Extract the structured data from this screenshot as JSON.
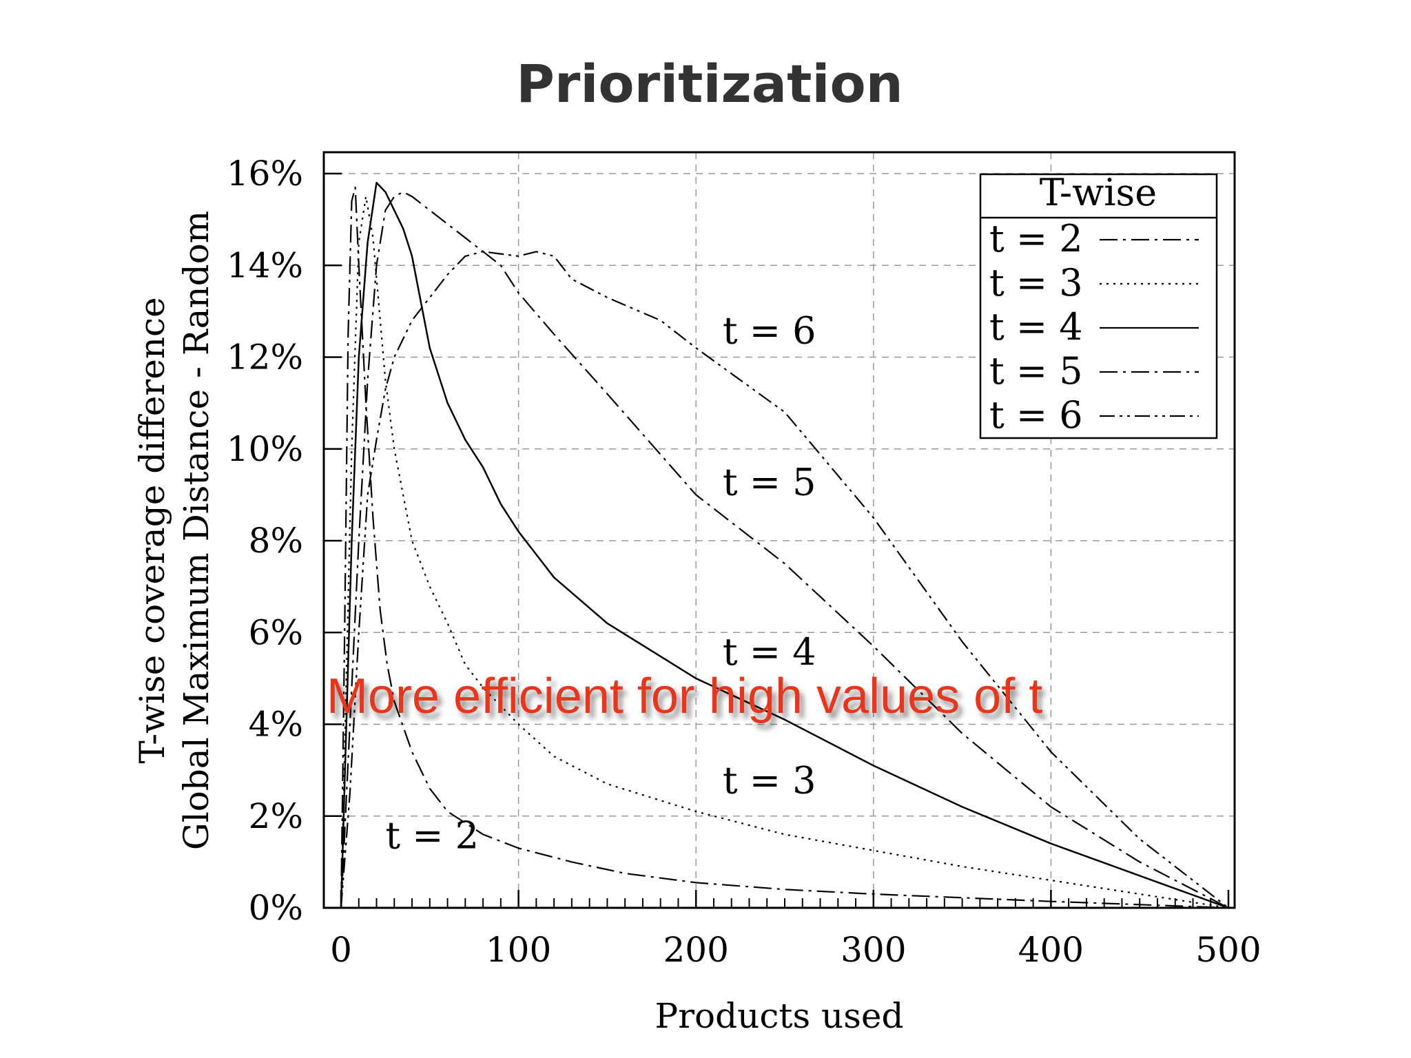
{
  "chart_data": {
    "type": "line",
    "title": "Prioritization",
    "xlabel": "Products used",
    "ylabel_lines": [
      "T-wise coverage difference",
      "Global Maximum Distance - Random"
    ],
    "xlim": [
      0,
      500
    ],
    "ylim": [
      0,
      16
    ],
    "x_ticks": [
      0,
      100,
      200,
      300,
      400,
      500
    ],
    "x_tick_labels": [
      "0",
      "100",
      "200",
      "300",
      "400",
      "500"
    ],
    "y_ticks": [
      0,
      2,
      4,
      6,
      8,
      10,
      12,
      14,
      16
    ],
    "y_tick_labels": [
      "0%",
      "2%",
      "4%",
      "6%",
      "8%",
      "10%",
      "12%",
      "14%",
      "16%"
    ],
    "grid": true,
    "legend": {
      "title": "T-wise",
      "placement": "top-right"
    },
    "series": [
      {
        "name": "t = 2",
        "dash": "dash-dot",
        "points": [
          [
            0,
            0
          ],
          [
            2,
            6
          ],
          [
            4,
            12.5
          ],
          [
            6,
            15.4
          ],
          [
            8,
            15.7
          ],
          [
            10,
            14
          ],
          [
            14,
            11
          ],
          [
            18,
            8.5
          ],
          [
            22,
            6.5
          ],
          [
            26,
            5.3
          ],
          [
            30,
            4.5
          ],
          [
            40,
            3.4
          ],
          [
            50,
            2.6
          ],
          [
            60,
            2.1
          ],
          [
            80,
            1.6
          ],
          [
            100,
            1.3
          ],
          [
            130,
            1
          ],
          [
            160,
            0.75
          ],
          [
            200,
            0.55
          ],
          [
            250,
            0.4
          ],
          [
            300,
            0.3
          ],
          [
            350,
            0.22
          ],
          [
            400,
            0.14
          ],
          [
            450,
            0.07
          ],
          [
            500,
            0
          ]
        ]
      },
      {
        "name": "t = 3",
        "dash": "dotted",
        "points": [
          [
            0,
            0
          ],
          [
            3,
            5
          ],
          [
            6,
            10
          ],
          [
            10,
            14.5
          ],
          [
            14,
            15.5
          ],
          [
            18,
            14.6
          ],
          [
            25,
            11.5
          ],
          [
            30,
            10
          ],
          [
            40,
            8
          ],
          [
            50,
            7
          ],
          [
            60,
            6.2
          ],
          [
            70,
            5.3
          ],
          [
            80,
            4.8
          ],
          [
            100,
            4
          ],
          [
            120,
            3.3
          ],
          [
            150,
            2.7
          ],
          [
            200,
            2.1
          ],
          [
            250,
            1.6
          ],
          [
            300,
            1.25
          ],
          [
            350,
            0.9
          ],
          [
            400,
            0.6
          ],
          [
            450,
            0.3
          ],
          [
            500,
            0
          ]
        ]
      },
      {
        "name": "t = 4",
        "dash": "solid",
        "points": [
          [
            0,
            0
          ],
          [
            3,
            4
          ],
          [
            6,
            8
          ],
          [
            10,
            12
          ],
          [
            15,
            14.5
          ],
          [
            20,
            15.8
          ],
          [
            25,
            15.6
          ],
          [
            30,
            15.2
          ],
          [
            35,
            14.8
          ],
          [
            40,
            14.2
          ],
          [
            50,
            12.2
          ],
          [
            60,
            11
          ],
          [
            70,
            10.2
          ],
          [
            80,
            9.6
          ],
          [
            90,
            8.8
          ],
          [
            100,
            8.2
          ],
          [
            120,
            7.2
          ],
          [
            150,
            6.2
          ],
          [
            200,
            5
          ],
          [
            250,
            4.1
          ],
          [
            300,
            3.1
          ],
          [
            350,
            2.2
          ],
          [
            400,
            1.4
          ],
          [
            450,
            0.7
          ],
          [
            500,
            0
          ]
        ]
      },
      {
        "name": "t = 5",
        "dash": "dash-dot",
        "points": [
          [
            0,
            0
          ],
          [
            5,
            4
          ],
          [
            10,
            8
          ],
          [
            15,
            11.5
          ],
          [
            20,
            14
          ],
          [
            25,
            15.2
          ],
          [
            30,
            15.5
          ],
          [
            35,
            15.6
          ],
          [
            40,
            15.5
          ],
          [
            50,
            15.2
          ],
          [
            60,
            14.9
          ],
          [
            70,
            14.6
          ],
          [
            80,
            14.3
          ],
          [
            90,
            14
          ],
          [
            100,
            13.4
          ],
          [
            120,
            12.5
          ],
          [
            150,
            11.2
          ],
          [
            200,
            9
          ],
          [
            250,
            7.5
          ],
          [
            300,
            5.7
          ],
          [
            350,
            3.8
          ],
          [
            400,
            2.2
          ],
          [
            450,
            1
          ],
          [
            500,
            0
          ]
        ]
      },
      {
        "name": "t = 6",
        "dash": "dash-dot-dot",
        "points": [
          [
            0,
            0
          ],
          [
            5,
            2.5
          ],
          [
            10,
            6
          ],
          [
            15,
            9
          ],
          [
            20,
            10.2
          ],
          [
            25,
            11.3
          ],
          [
            30,
            12
          ],
          [
            40,
            12.8
          ],
          [
            50,
            13.3
          ],
          [
            60,
            13.8
          ],
          [
            70,
            14.2
          ],
          [
            80,
            14.3
          ],
          [
            90,
            14.25
          ],
          [
            100,
            14.2
          ],
          [
            110,
            14.3
          ],
          [
            120,
            14.2
          ],
          [
            130,
            13.7
          ],
          [
            150,
            13.3
          ],
          [
            180,
            12.8
          ],
          [
            200,
            12.2
          ],
          [
            250,
            10.8
          ],
          [
            300,
            8.5
          ],
          [
            350,
            5.8
          ],
          [
            400,
            3.4
          ],
          [
            450,
            1.5
          ],
          [
            500,
            0
          ]
        ]
      }
    ],
    "annotations": [
      {
        "text": "t = 6",
        "x": 215,
        "y": 12.3
      },
      {
        "text": "t = 5",
        "x": 215,
        "y": 9.0
      },
      {
        "text": "t = 4",
        "x": 215,
        "y": 5.3
      },
      {
        "text": "t = 3",
        "x": 215,
        "y": 2.5
      },
      {
        "text": "t = 2",
        "x": 25,
        "y": 1.3
      }
    ]
  },
  "overlay": {
    "text": "More efficient for high values of t",
    "color": "#e8351f"
  }
}
